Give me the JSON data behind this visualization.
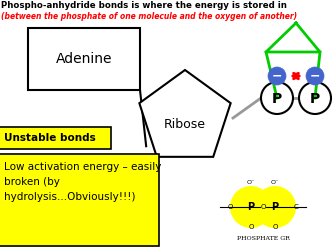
{
  "title_line1": "Phospho-anhydride bonds is where the energy is stored in",
  "title_line2": "(between the phosphate of one molecule and the oxygen of another)",
  "adenine_label": "Adenine",
  "ribose_label": "Ribose",
  "unstable_label": "Unstable bonds",
  "low_energy_label": "Low activation energy – easily\nbroken (by\nhydrolysis...Obviously!!!)",
  "phosphate_label": "PHOSPHATE GR",
  "p_label": "P",
  "bg_color": "#ffffff",
  "yellow_color": "#ffff00",
  "black_color": "#000000",
  "red_color": "#ff0000",
  "green_color": "#00cc00",
  "blue_color": "#4466cc",
  "gray_color": "#999999"
}
